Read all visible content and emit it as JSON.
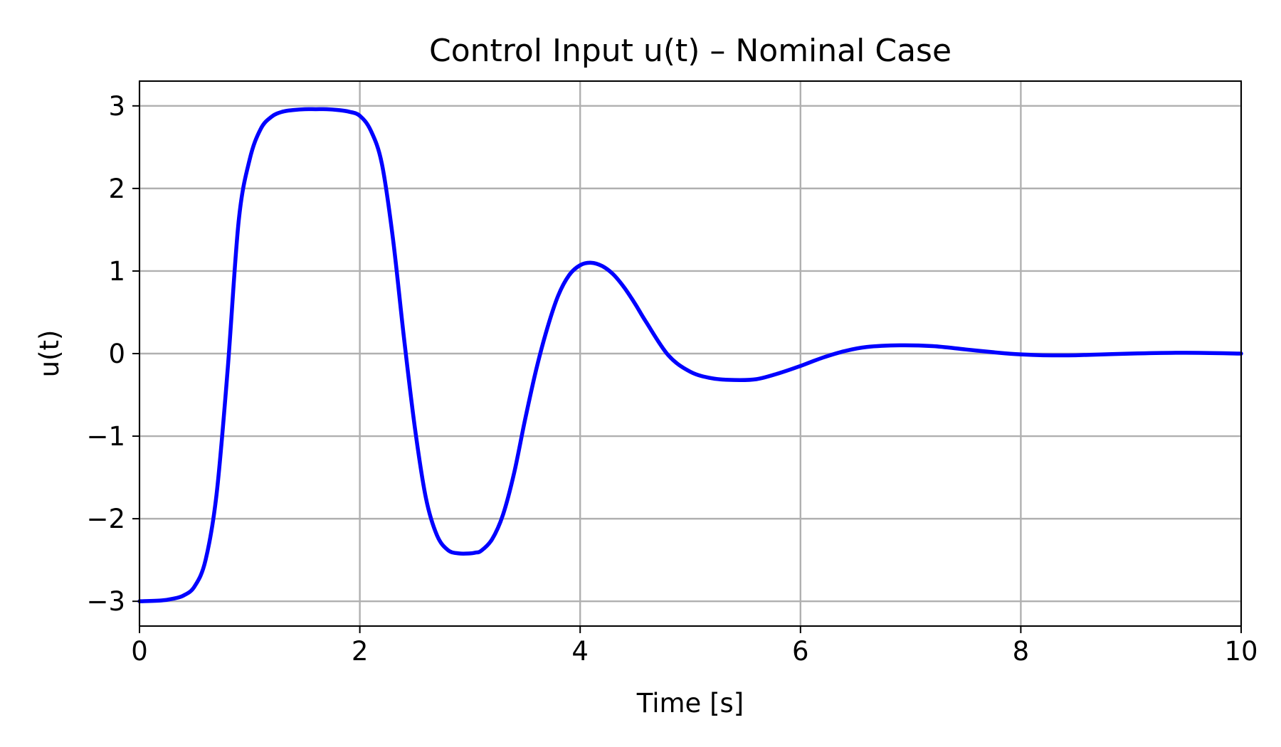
{
  "colors": {
    "series": "#0000ff",
    "grid": "#b0b0b0",
    "axes": "#000000"
  },
  "chart_data": {
    "type": "line",
    "title": "Control Input u(t) – Nominal Case",
    "xlabel": "Time [s]",
    "ylabel": "u(t)",
    "xlim": [
      0,
      10
    ],
    "ylim": [
      -3.3,
      3.3
    ],
    "xticks": [
      0,
      2,
      4,
      6,
      8,
      10
    ],
    "xtick_labels": [
      "0",
      "2",
      "4",
      "6",
      "8",
      "10"
    ],
    "yticks": [
      -3,
      -2,
      -1,
      0,
      1,
      2,
      3
    ],
    "ytick_labels": [
      "−3",
      "−2",
      "−1",
      "0",
      "1",
      "2",
      "3"
    ],
    "grid": true,
    "legend": "none",
    "series": [
      {
        "color": "#0000ff",
        "x": [
          0,
          0.2,
          0.3,
          0.4,
          0.5,
          0.6,
          0.7,
          0.8,
          0.9,
          1.0,
          1.1,
          1.2,
          1.3,
          1.4,
          1.5,
          1.6,
          1.7,
          1.8,
          1.9,
          2.0,
          2.1,
          2.2,
          2.3,
          2.4,
          2.5,
          2.6,
          2.7,
          2.8,
          2.9,
          3.0,
          3.05,
          3.1,
          3.2,
          3.3,
          3.4,
          3.5,
          3.6,
          3.7,
          3.8,
          3.9,
          4.0,
          4.1,
          4.2,
          4.3,
          4.4,
          4.5,
          4.6,
          4.8,
          5.0,
          5.2,
          5.4,
          5.6,
          5.8,
          6.0,
          6.2,
          6.4,
          6.6,
          6.9,
          7.2,
          7.5,
          7.8,
          8.0,
          8.2,
          8.5,
          9.0,
          9.5,
          10.0
        ],
        "y": [
          -3.0,
          -2.99,
          -2.97,
          -2.93,
          -2.82,
          -2.5,
          -1.7,
          -0.2,
          1.6,
          2.35,
          2.72,
          2.87,
          2.93,
          2.95,
          2.96,
          2.96,
          2.96,
          2.95,
          2.93,
          2.88,
          2.7,
          2.3,
          1.4,
          0.2,
          -0.9,
          -1.75,
          -2.2,
          -2.38,
          -2.42,
          -2.42,
          -2.41,
          -2.39,
          -2.25,
          -1.95,
          -1.45,
          -0.8,
          -0.2,
          0.3,
          0.7,
          0.95,
          1.07,
          1.1,
          1.06,
          0.96,
          0.8,
          0.6,
          0.38,
          -0.02,
          -0.22,
          -0.3,
          -0.32,
          -0.31,
          -0.24,
          -0.15,
          -0.05,
          0.03,
          0.08,
          0.1,
          0.09,
          0.05,
          0.01,
          -0.01,
          -0.02,
          -0.02,
          0.0,
          0.01,
          0.0
        ]
      }
    ]
  }
}
